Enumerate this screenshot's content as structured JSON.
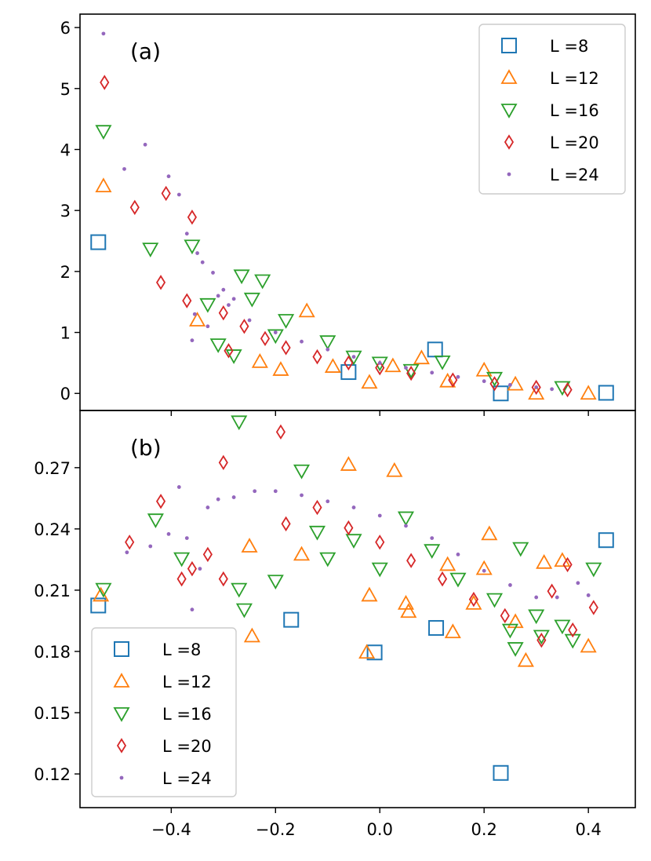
{
  "chart_data": [
    {
      "type": "scatter",
      "panel_label": "(a)",
      "xlim": [
        -0.575,
        0.49
      ],
      "ylim": [
        -0.28,
        6.22
      ],
      "yticks": [
        0,
        1,
        2,
        3,
        4,
        5,
        6
      ],
      "ytick_labels": [
        "0",
        "1",
        "2",
        "3",
        "4",
        "5",
        "6"
      ],
      "xlabel": "",
      "ylabel": "",
      "legend_position": "top-right",
      "series": [
        {
          "name": "L =8",
          "marker": "square",
          "color": "#1f77b4",
          "points": [
            [
              -0.54,
              2.48
            ],
            [
              -0.06,
              0.35
            ],
            [
              0.106,
              0.72
            ],
            [
              0.232,
              0.0
            ],
            [
              0.434,
              0.01
            ]
          ]
        },
        {
          "name": "L =12",
          "marker": "triangle-up",
          "color": "#ff7f0e",
          "points": [
            [
              -0.53,
              3.4
            ],
            [
              -0.23,
              0.52
            ],
            [
              -0.19,
              0.39
            ],
            [
              -0.14,
              1.35
            ],
            [
              -0.09,
              0.44
            ],
            [
              -0.02,
              0.18
            ],
            [
              0.025,
              0.45
            ],
            [
              0.08,
              0.58
            ],
            [
              0.13,
              0.2
            ],
            [
              0.2,
              0.38
            ],
            [
              0.26,
              0.15
            ],
            [
              0.3,
              0.0
            ],
            [
              0.4,
              0.0
            ],
            [
              -0.35,
              1.2
            ]
          ]
        },
        {
          "name": "L =16",
          "marker": "triangle-down",
          "color": "#2ca02c",
          "points": [
            [
              -0.53,
              4.3
            ],
            [
              -0.44,
              2.37
            ],
            [
              -0.36,
              2.42
            ],
            [
              -0.33,
              1.46
            ],
            [
              -0.31,
              0.8
            ],
            [
              -0.28,
              0.62
            ],
            [
              -0.265,
              1.93
            ],
            [
              -0.245,
              1.55
            ],
            [
              -0.225,
              1.85
            ],
            [
              -0.2,
              0.95
            ],
            [
              -0.18,
              1.2
            ],
            [
              -0.1,
              0.85
            ],
            [
              -0.05,
              0.6
            ],
            [
              0.0,
              0.5
            ],
            [
              0.06,
              0.38
            ],
            [
              0.12,
              0.52
            ],
            [
              0.22,
              0.25
            ],
            [
              0.35,
              0.1
            ]
          ]
        },
        {
          "name": "L =20",
          "marker": "diamond",
          "color": "#d62728",
          "points": [
            [
              -0.528,
              5.1
            ],
            [
              -0.47,
              3.05
            ],
            [
              -0.41,
              3.28
            ],
            [
              -0.36,
              2.89
            ],
            [
              -0.42,
              1.82
            ],
            [
              -0.37,
              1.52
            ],
            [
              -0.3,
              1.32
            ],
            [
              -0.29,
              0.7
            ],
            [
              -0.26,
              1.1
            ],
            [
              -0.22,
              0.9
            ],
            [
              -0.18,
              0.75
            ],
            [
              -0.12,
              0.6
            ],
            [
              -0.06,
              0.5
            ],
            [
              0.0,
              0.42
            ],
            [
              0.06,
              0.33
            ],
            [
              0.14,
              0.22
            ],
            [
              0.22,
              0.16
            ],
            [
              0.3,
              0.1
            ],
            [
              0.36,
              0.06
            ]
          ]
        },
        {
          "name": "L =24",
          "marker": "dot",
          "color": "#9467bd",
          "points": [
            [
              -0.53,
              5.9
            ],
            [
              -0.49,
              3.68
            ],
            [
              -0.45,
              4.08
            ],
            [
              -0.405,
              3.56
            ],
            [
              -0.385,
              3.26
            ],
            [
              -0.37,
              2.62
            ],
            [
              -0.35,
              2.3
            ],
            [
              -0.34,
              2.15
            ],
            [
              -0.32,
              1.98
            ],
            [
              -0.31,
              1.6
            ],
            [
              -0.3,
              1.7
            ],
            [
              -0.36,
              0.87
            ],
            [
              -0.355,
              1.3
            ],
            [
              -0.33,
              1.1
            ],
            [
              -0.29,
              1.45
            ],
            [
              -0.28,
              1.55
            ],
            [
              -0.25,
              1.2
            ],
            [
              -0.2,
              1.0
            ],
            [
              -0.15,
              0.85
            ],
            [
              -0.1,
              0.72
            ],
            [
              -0.05,
              0.6
            ],
            [
              0.0,
              0.5
            ],
            [
              0.05,
              0.42
            ],
            [
              0.1,
              0.34
            ],
            [
              0.15,
              0.27
            ],
            [
              0.2,
              0.2
            ],
            [
              0.25,
              0.14
            ],
            [
              0.3,
              0.1
            ],
            [
              0.33,
              0.07
            ]
          ]
        }
      ]
    },
    {
      "type": "scatter",
      "panel_label": "(b)",
      "xlim": [
        -0.575,
        0.49
      ],
      "ylim": [
        0.1035,
        0.298
      ],
      "yticks": [
        0.12,
        0.15,
        0.18,
        0.21,
        0.24,
        0.27
      ],
      "ytick_labels": [
        "0.12",
        "0.15",
        "0.18",
        "0.21",
        "0.24",
        "0.27"
      ],
      "xticks": [
        -0.4,
        -0.2,
        0.0,
        0.2,
        0.4
      ],
      "xtick_labels": [
        "−0.4",
        "−0.2",
        "0.0",
        "0.2",
        "0.4"
      ],
      "xlabel": "",
      "ylabel": "",
      "legend_position": "lower-left",
      "series": [
        {
          "name": "L =8",
          "marker": "square",
          "color": "#1f77b4",
          "points": [
            [
              -0.54,
              0.2025
            ],
            [
              -0.17,
              0.1955
            ],
            [
              -0.01,
              0.1795
            ],
            [
              0.108,
              0.1915
            ],
            [
              0.232,
              0.1205
            ],
            [
              0.434,
              0.2345
            ]
          ]
        },
        {
          "name": "L =12",
          "marker": "triangle-up",
          "color": "#ff7f0e",
          "points": [
            [
              -0.535,
              0.2075
            ],
            [
              -0.25,
              0.2315
            ],
            [
              -0.245,
              0.1875
            ],
            [
              -0.15,
              0.2275
            ],
            [
              -0.06,
              0.2715
            ],
            [
              -0.02,
              0.2075
            ],
            [
              -0.025,
              0.1795
            ],
            [
              0.028,
              0.2685
            ],
            [
              0.05,
              0.2035
            ],
            [
              0.055,
              0.1995
            ],
            [
              0.13,
              0.2225
            ],
            [
              0.14,
              0.1895
            ],
            [
              0.18,
              0.2035
            ],
            [
              0.2,
              0.2205
            ],
            [
              0.21,
              0.2375
            ],
            [
              0.26,
              0.1945
            ],
            [
              0.28,
              0.1755
            ],
            [
              0.315,
              0.2235
            ],
            [
              0.35,
              0.2245
            ],
            [
              0.4,
              0.1825
            ]
          ]
        },
        {
          "name": "L =16",
          "marker": "triangle-down",
          "color": "#2ca02c",
          "points": [
            [
              -0.53,
              0.2105
            ],
            [
              -0.43,
              0.2445
            ],
            [
              -0.38,
              0.2255
            ],
            [
              -0.27,
              0.2925
            ],
            [
              -0.27,
              0.2105
            ],
            [
              -0.26,
              0.2005
            ],
            [
              -0.2,
              0.2145
            ],
            [
              -0.15,
              0.2685
            ],
            [
              -0.12,
              0.2385
            ],
            [
              -0.1,
              0.2255
            ],
            [
              -0.05,
              0.2345
            ],
            [
              0.0,
              0.2205
            ],
            [
              0.05,
              0.2455
            ],
            [
              0.1,
              0.2295
            ],
            [
              0.15,
              0.2155
            ],
            [
              0.22,
              0.2055
            ],
            [
              0.25,
              0.1905
            ],
            [
              0.26,
              0.1815
            ],
            [
              0.27,
              0.2305
            ],
            [
              0.3,
              0.1975
            ],
            [
              0.31,
              0.1875
            ],
            [
              0.35,
              0.1925
            ],
            [
              0.37,
              0.1855
            ],
            [
              0.41,
              0.2205
            ]
          ]
        },
        {
          "name": "L =20",
          "marker": "diamond",
          "color": "#d62728",
          "points": [
            [
              -0.48,
              0.2335
            ],
            [
              -0.42,
              0.2535
            ],
            [
              -0.38,
              0.2155
            ],
            [
              -0.36,
              0.2205
            ],
            [
              -0.33,
              0.2275
            ],
            [
              -0.3,
              0.2155
            ],
            [
              -0.3,
              0.2725
            ],
            [
              -0.19,
              0.2875
            ],
            [
              -0.18,
              0.2425
            ],
            [
              -0.12,
              0.2505
            ],
            [
              -0.06,
              0.2405
            ],
            [
              0.0,
              0.2335
            ],
            [
              0.06,
              0.2245
            ],
            [
              0.12,
              0.2155
            ],
            [
              0.18,
              0.2055
            ],
            [
              0.24,
              0.1975
            ],
            [
              0.31,
              0.1855
            ],
            [
              0.33,
              0.2095
            ],
            [
              0.36,
              0.2225
            ],
            [
              0.37,
              0.1905
            ],
            [
              0.41,
              0.2015
            ]
          ]
        },
        {
          "name": "L =24",
          "marker": "dot",
          "color": "#9467bd",
          "points": [
            [
              -0.485,
              0.2285
            ],
            [
              -0.44,
              0.2315
            ],
            [
              -0.405,
              0.2375
            ],
            [
              -0.385,
              0.2605
            ],
            [
              -0.37,
              0.2355
            ],
            [
              -0.36,
              0.2005
            ],
            [
              -0.345,
              0.2205
            ],
            [
              -0.33,
              0.2505
            ],
            [
              -0.31,
              0.2545
            ],
            [
              -0.28,
              0.2555
            ],
            [
              -0.24,
              0.2585
            ],
            [
              -0.2,
              0.2585
            ],
            [
              -0.15,
              0.2565
            ],
            [
              -0.1,
              0.2535
            ],
            [
              -0.05,
              0.2505
            ],
            [
              0.0,
              0.2465
            ],
            [
              0.05,
              0.2415
            ],
            [
              0.1,
              0.2355
            ],
            [
              0.15,
              0.2275
            ],
            [
              0.2,
              0.2195
            ],
            [
              0.25,
              0.2125
            ],
            [
              0.3,
              0.2065
            ],
            [
              0.34,
              0.2065
            ],
            [
              0.38,
              0.2135
            ],
            [
              0.4,
              0.2075
            ]
          ]
        }
      ]
    }
  ]
}
